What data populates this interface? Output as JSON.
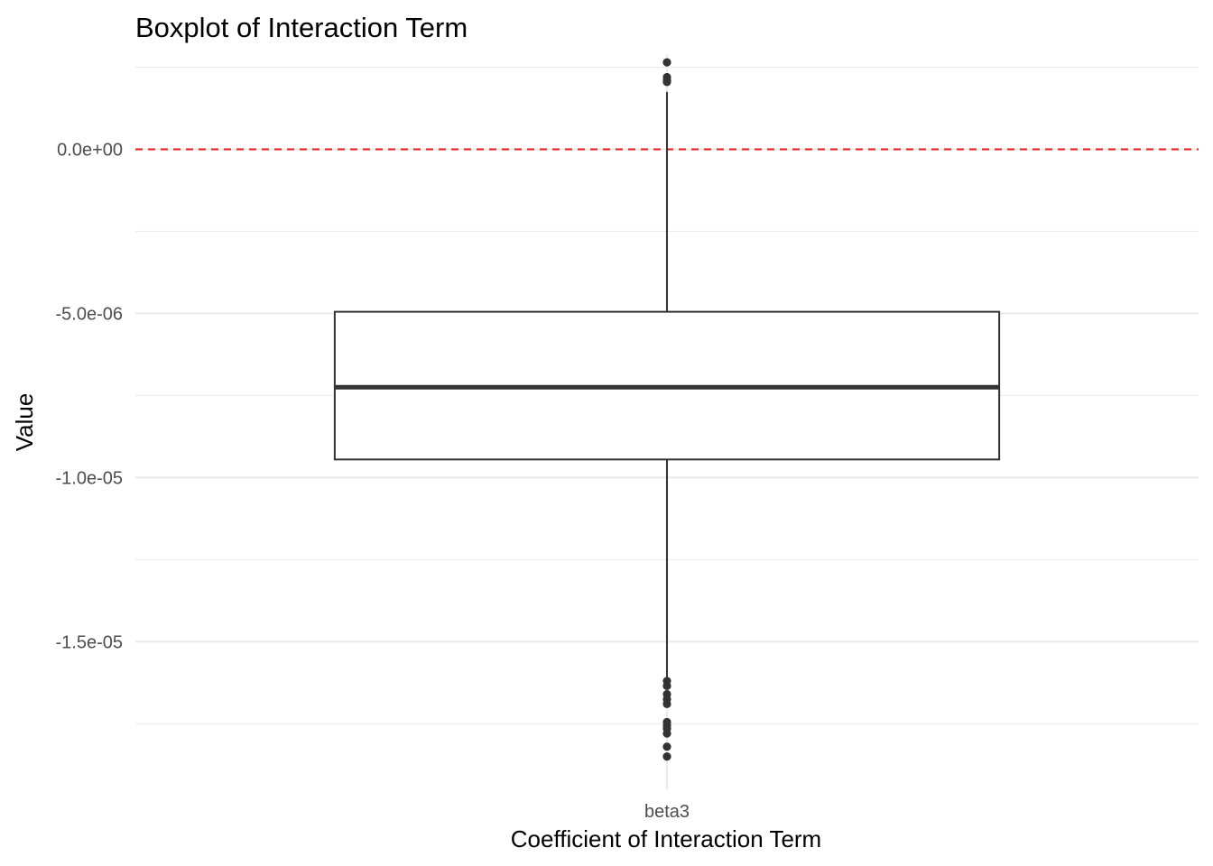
{
  "chart_data": {
    "type": "boxplot",
    "title": "Boxplot of Interaction Term",
    "xlabel": "Coefficient of Interaction Term",
    "ylabel": "Value",
    "categories": [
      "beta3"
    ],
    "ylim": [
      -1.95e-05,
      2.9e-06
    ],
    "y_ticks": [
      0,
      -5e-06,
      -1e-05,
      -1.5e-05
    ],
    "y_tick_labels": [
      "0.0e+00",
      "-5.0e-06",
      "-1.0e-05",
      "-1.5e-05"
    ],
    "grid": true,
    "reference_line": {
      "y": 0,
      "color": "#e41a1c",
      "style": "dashed"
    },
    "boxes": [
      {
        "category": "beta3",
        "q1": -9.45e-06,
        "median": -7.25e-06,
        "q3": -4.95e-06,
        "whisker_low": -1.62e-05,
        "whisker_high": 1.75e-06,
        "outliers": [
          2.65e-06,
          2.2e-06,
          2.1e-06,
          2.05e-06,
          -1.62e-05,
          -1.635e-05,
          -1.66e-05,
          -1.675e-05,
          -1.69e-05,
          -1.745e-05,
          -1.755e-05,
          -1.765e-05,
          -1.78e-05,
          -1.82e-05,
          -1.85e-05
        ]
      }
    ],
    "colors": {
      "box_line": "#333333",
      "points": "#333333",
      "grid": "#ebebeb",
      "ref": "#e41a1c"
    }
  }
}
